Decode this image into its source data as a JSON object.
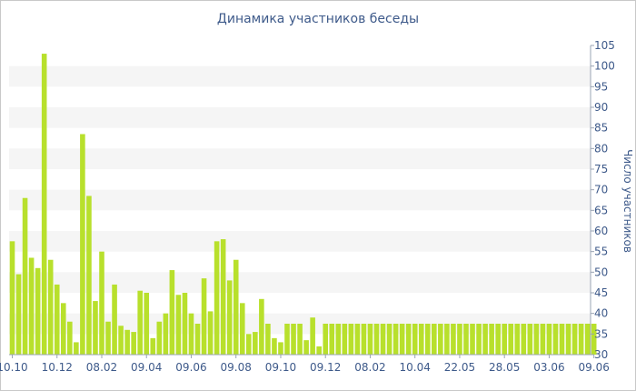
{
  "chart_data": {
    "type": "bar",
    "title": "Динамика участников беседы",
    "ylabel": "Число участников",
    "xlabel": "",
    "ylim": [
      30,
      105
    ],
    "yticks": [
      30,
      35,
      40,
      45,
      50,
      55,
      60,
      65,
      70,
      75,
      80,
      85,
      90,
      95,
      100,
      105
    ],
    "grid": "horizontal-bands",
    "bar_color": "#b8e02c",
    "band_color": "#f5f5f5",
    "text_color": "#3e5a8a",
    "x_tick_labels": [
      {
        "label": "10.10",
        "index": 0
      },
      {
        "label": "10.12",
        "index": 7
      },
      {
        "label": "08.02",
        "index": 14
      },
      {
        "label": "09.04",
        "index": 21
      },
      {
        "label": "09.06",
        "index": 28
      },
      {
        "label": "09.08",
        "index": 35
      },
      {
        "label": "09.10",
        "index": 42
      },
      {
        "label": "09.12",
        "index": 49
      },
      {
        "label": "08.02",
        "index": 56
      },
      {
        "label": "10.04",
        "index": 63
      },
      {
        "label": "22.05",
        "index": 70
      },
      {
        "label": "28.05",
        "index": 77
      },
      {
        "label": "03.06",
        "index": 84
      },
      {
        "label": "09.06",
        "index": 91
      }
    ],
    "values": [
      57.5,
      49.5,
      68,
      53.5,
      51,
      103,
      53,
      47,
      42.5,
      38,
      33,
      83.5,
      68.5,
      43,
      55,
      38,
      47,
      37,
      36,
      35.5,
      45.5,
      45,
      34,
      38,
      40,
      50.5,
      44.5,
      45,
      40,
      37.5,
      48.5,
      40.5,
      57.5,
      58,
      48,
      53,
      42.5,
      35,
      35.5,
      43.5,
      37.5,
      34,
      33,
      37.5,
      37.5,
      37.5,
      33.5,
      39,
      32,
      37.5,
      37.5,
      37.5,
      37.5,
      37.5,
      37.5,
      37.5,
      37.5,
      37.5,
      37.5,
      37.5,
      37.5,
      37.5,
      37.5,
      37.5,
      37.5,
      37.5,
      37.5,
      37.5,
      37.5,
      37.5,
      37.5,
      37.5,
      37.5,
      37.5,
      37.5,
      37.5,
      37.5,
      37.5,
      37.5,
      37.5,
      37.5,
      37.5,
      37.5,
      37.5,
      37.5,
      37.5,
      37.5,
      37.5,
      37.5,
      37.5,
      37.5,
      37.5
    ]
  }
}
